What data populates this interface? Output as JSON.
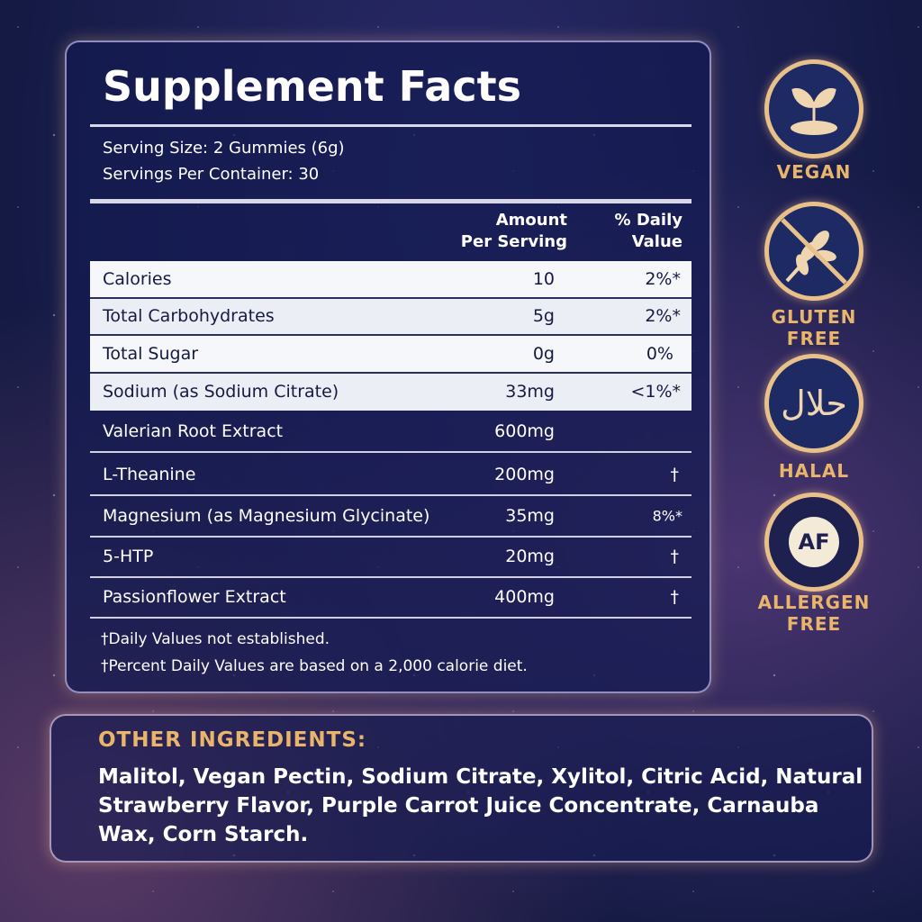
{
  "title": "Supplement Facts",
  "serving_size": "Serving Size: 2 Gummies (6g)",
  "servings_per_container": "Servings Per Container: 30",
  "header": {
    "amount_line1": "Amount",
    "amount_line2": "Per Serving",
    "dv_line1": "% Daily",
    "dv_line2": "Value"
  },
  "highlighted_rows": [
    {
      "name": "Calories",
      "amount": "10",
      "dv": "2%*"
    },
    {
      "name": "Total Carbohydrates",
      "amount": "5g",
      "dv": "2%*"
    },
    {
      "name": "Total Sugar",
      "amount": "0g",
      "dv": "0%"
    },
    {
      "name": "Sodium (as Sodium Citrate)",
      "amount": "33mg",
      "dv": "<1%*"
    }
  ],
  "rows": [
    {
      "name": "Valerian Root Extract",
      "amount": "600mg",
      "dv": ""
    },
    {
      "name": "L-Theanine",
      "amount": "200mg",
      "dv": "†"
    },
    {
      "name": "Magnesium (as Magnesium Glycinate)",
      "amount": "35mg",
      "dv": "8%*"
    },
    {
      "name": "5-HTP",
      "amount": "20mg",
      "dv": "†"
    },
    {
      "name": "Passionflower Extract",
      "amount": "400mg",
      "dv": "†"
    }
  ],
  "footnotes": [
    "†Daily Values not established.",
    "†Percent Daily Values are based on a 2,000 calorie diet."
  ],
  "other_ingredients": {
    "title": "OTHER INGREDIENTS:",
    "text": "Malitol, Vegan Pectin, Sodium Citrate, Xylitol, Citric Acid, Natural Strawberry Flavor, Purple Carrot Juice Concentrate, Carnauba Wax, Corn Starch."
  },
  "badges": [
    {
      "icon": "sprout-icon",
      "line1": "VEGAN",
      "line2": ""
    },
    {
      "icon": "no-wheat-icon",
      "line1": "GLUTEN",
      "line2": "FREE"
    },
    {
      "icon": "halal-icon",
      "line1": "HALAL",
      "line2": "",
      "glyph": "حلال"
    },
    {
      "icon": "allergen-free-icon",
      "line1": "ALLERGEN",
      "line2": "FREE",
      "glyph": "AF"
    }
  ],
  "colors": {
    "gold": "#e9b56a",
    "panel": "#141a50"
  }
}
